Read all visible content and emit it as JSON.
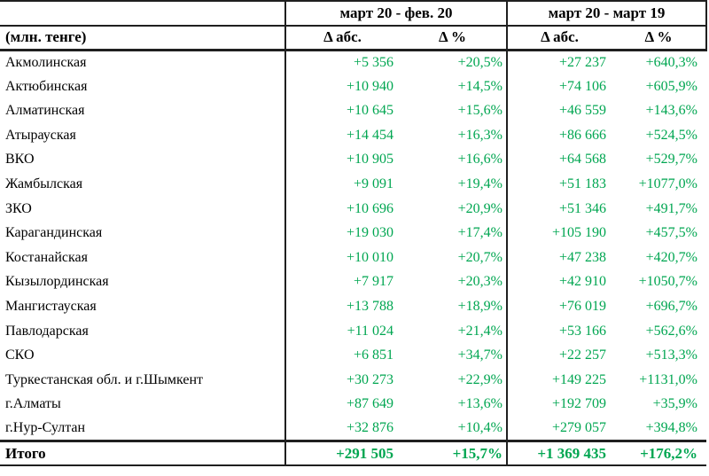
{
  "chart_data": {
    "type": "table",
    "unit_label": "(млн. тенге)",
    "column_groups": [
      "март 20 - фев. 20",
      "март 20 - март 19"
    ],
    "columns": [
      "Δ абс.",
      "Δ %",
      "Δ абс.",
      "Δ %"
    ],
    "rows": [
      {
        "region": "Акмолинская",
        "cells": [
          "+5 356",
          "+20,5%",
          "+27 237",
          "+640,3%"
        ]
      },
      {
        "region": "Актюбинская",
        "cells": [
          "+10 940",
          "+14,5%",
          "+74 106",
          "+605,9%"
        ]
      },
      {
        "region": "Алматинская",
        "cells": [
          "+10 645",
          "+15,6%",
          "+46 559",
          "+143,6%"
        ]
      },
      {
        "region": "Атырауская",
        "cells": [
          "+14 454",
          "+16,3%",
          "+86 666",
          "+524,5%"
        ]
      },
      {
        "region": "ВКО",
        "cells": [
          "+10 905",
          "+16,6%",
          "+64 568",
          "+529,7%"
        ]
      },
      {
        "region": "Жамбылская",
        "cells": [
          "+9 091",
          "+19,4%",
          "+51 183",
          "+1077,0%"
        ]
      },
      {
        "region": "ЗКО",
        "cells": [
          "+10 696",
          "+20,9%",
          "+51 346",
          "+491,7%"
        ]
      },
      {
        "region": "Карагандинская",
        "cells": [
          "+19 030",
          "+17,4%",
          "+105 190",
          "+457,5%"
        ]
      },
      {
        "region": "Костанайская",
        "cells": [
          "+10 010",
          "+20,7%",
          "+47 238",
          "+420,7%"
        ]
      },
      {
        "region": "Кызылординская",
        "cells": [
          "+7 917",
          "+20,3%",
          "+42 910",
          "+1050,7%"
        ]
      },
      {
        "region": "Мангистауская",
        "cells": [
          "+13 788",
          "+18,9%",
          "+76 019",
          "+696,7%"
        ]
      },
      {
        "region": "Павлодарская",
        "cells": [
          "+11 024",
          "+21,4%",
          "+53 166",
          "+562,6%"
        ]
      },
      {
        "region": "СКО",
        "cells": [
          "+6 851",
          "+34,7%",
          "+22 257",
          "+513,3%"
        ]
      },
      {
        "region": "Туркестанская обл. и г.Шымкент",
        "cells": [
          "+30 273",
          "+22,9%",
          "+149 225",
          "+1131,0%"
        ]
      },
      {
        "region": "г.Алматы",
        "cells": [
          "+87 649",
          "+13,6%",
          "+192 709",
          "+35,9%"
        ]
      },
      {
        "region": "г.Нур-Султан",
        "cells": [
          "+32 876",
          "+10,4%",
          "+279 057",
          "+394,8%"
        ]
      }
    ],
    "total": {
      "region": "Итого",
      "cells": [
        "+291 505",
        "+15,7%",
        "+1 369 435",
        "+176,2%"
      ]
    }
  },
  "colors": {
    "value_green": "#00A651",
    "header_text": "#000000",
    "border": "#1f1f1f"
  }
}
